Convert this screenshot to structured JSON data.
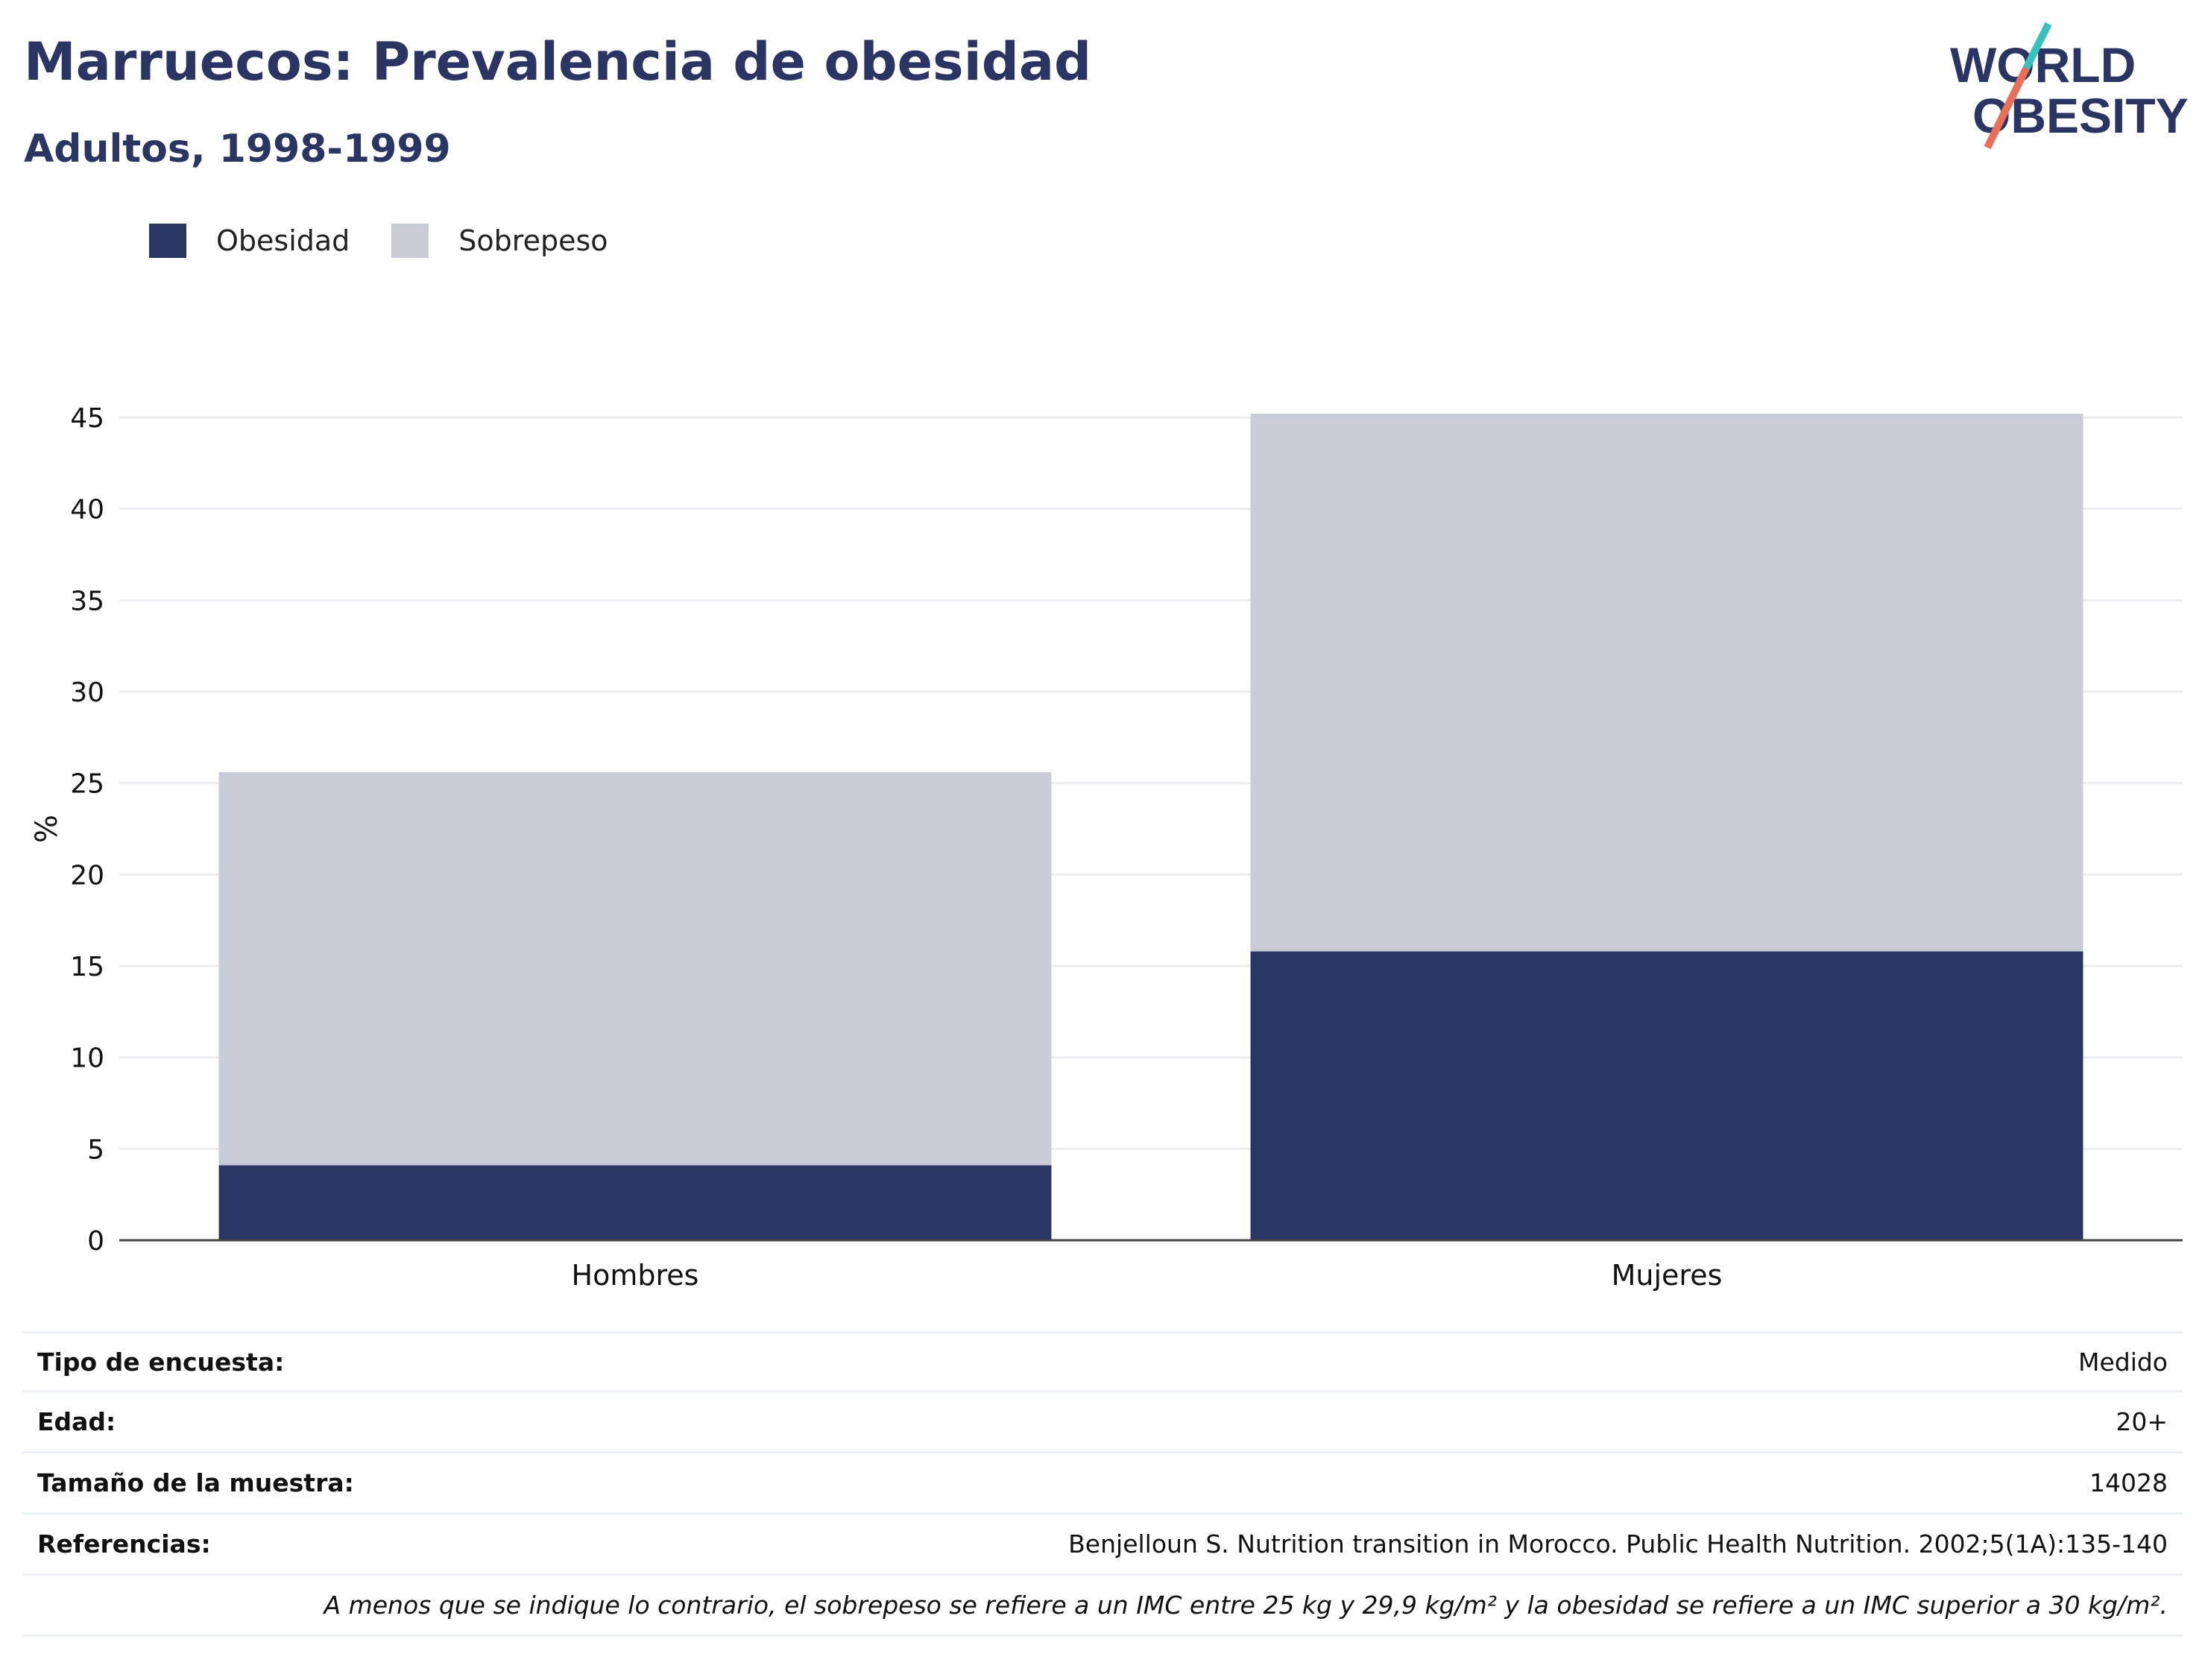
{
  "header": {
    "title": "Marruecos: Prevalencia de obesidad",
    "subtitle": "Adultos, 1998-1999"
  },
  "logo": {
    "line1": "WORLD",
    "line2": "OBESITY",
    "icon": "world-obesity-logo",
    "colors": {
      "text": "#2a3564",
      "slash_top": "#3bbfbf",
      "slash_bottom": "#e8705a"
    }
  },
  "legend": [
    {
      "label": "Obesidad",
      "color": "#2a3664"
    },
    {
      "label": "Sobrepeso",
      "color": "#c9cbd7"
    }
  ],
  "chart_data": {
    "type": "bar",
    "stacked": true,
    "categories": [
      "Hombres",
      "Mujeres"
    ],
    "series": [
      {
        "name": "Obesidad",
        "values": [
          4.1,
          15.8
        ],
        "color": "#2a3664"
      },
      {
        "name": "Sobrepeso",
        "values": [
          21.5,
          29.4
        ],
        "color": "#c9cbd7"
      }
    ],
    "ylabel": "%",
    "xlabel": "",
    "ylim": [
      0,
      45
    ],
    "yticks": [
      "0",
      "5",
      "10",
      "15",
      "20",
      "25",
      "30",
      "35",
      "40",
      "45"
    ],
    "grid": true,
    "legend_position": "top-left"
  },
  "info": {
    "rows": [
      {
        "label": "Tipo de encuesta:",
        "value": "Medido"
      },
      {
        "label": "Edad:",
        "value": "20+"
      },
      {
        "label": "Tamaño de la muestra:",
        "value": "14028"
      },
      {
        "label": "Referencias:",
        "value": "Benjelloun S. Nutrition transition in Morocco. Public Health Nutrition. 2002;5(1A):135-140"
      }
    ],
    "note": "A menos que se indique lo contrario, el sobrepeso se refiere a un IMC entre 25 kg y 29,9 kg/m² y la obesidad se refiere a un IMC superior a 30 kg/m²."
  }
}
